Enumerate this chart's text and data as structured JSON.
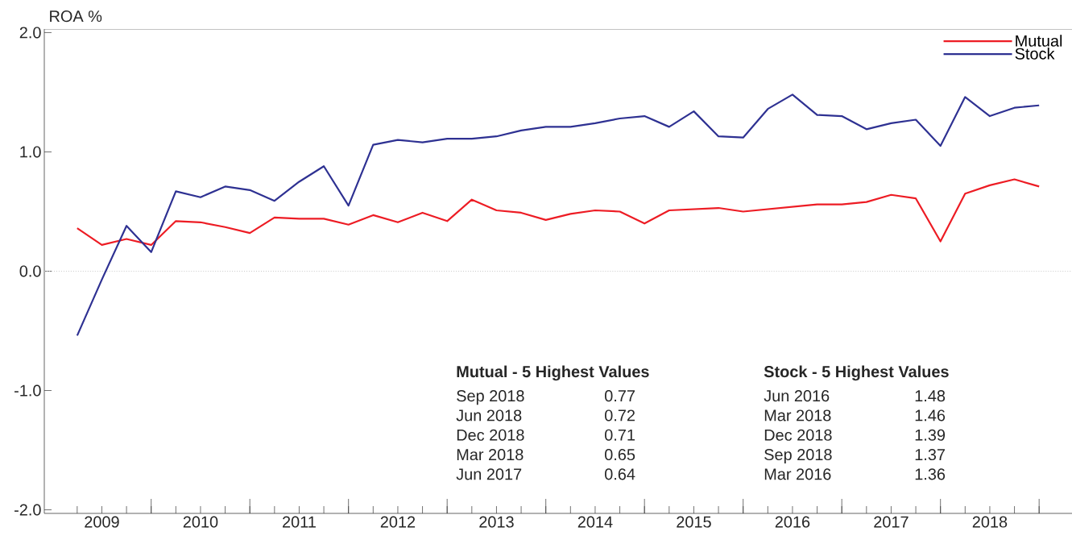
{
  "chart_data": {
    "type": "line",
    "ylabel": "ROA %",
    "x": [
      "2009-03",
      "2009-06",
      "2009-09",
      "2009-12",
      "2010-03",
      "2010-06",
      "2010-09",
      "2010-12",
      "2011-03",
      "2011-06",
      "2011-09",
      "2011-12",
      "2012-03",
      "2012-06",
      "2012-09",
      "2012-12",
      "2013-03",
      "2013-06",
      "2013-09",
      "2013-12",
      "2014-03",
      "2014-06",
      "2014-09",
      "2014-12",
      "2015-03",
      "2015-06",
      "2015-09",
      "2015-12",
      "2016-03",
      "2016-06",
      "2016-09",
      "2016-12",
      "2017-03",
      "2017-06",
      "2017-09",
      "2017-12",
      "2018-03",
      "2018-06",
      "2018-09",
      "2018-12"
    ],
    "series": [
      {
        "name": "Mutual",
        "color": "#ed1c24",
        "values": [
          0.36,
          0.22,
          0.27,
          0.22,
          0.42,
          0.41,
          0.37,
          0.32,
          0.45,
          0.44,
          0.44,
          0.39,
          0.47,
          0.41,
          0.49,
          0.42,
          0.6,
          0.51,
          0.49,
          0.43,
          0.48,
          0.51,
          0.5,
          0.4,
          0.51,
          0.52,
          0.53,
          0.5,
          0.52,
          0.54,
          0.56,
          0.56,
          0.58,
          0.64,
          0.61,
          0.25,
          0.65,
          0.72,
          0.77,
          0.71
        ]
      },
      {
        "name": "Stock",
        "color": "#2e3192",
        "values": [
          -0.54,
          -0.07,
          0.38,
          0.16,
          0.67,
          0.62,
          0.71,
          0.68,
          0.59,
          0.75,
          0.88,
          0.55,
          1.06,
          1.1,
          1.08,
          1.11,
          1.11,
          1.13,
          1.18,
          1.21,
          1.21,
          1.24,
          1.28,
          1.3,
          1.21,
          1.34,
          1.13,
          1.12,
          1.36,
          1.48,
          1.31,
          1.3,
          1.19,
          1.24,
          1.27,
          1.05,
          1.46,
          1.3,
          1.37,
          1.39
        ]
      }
    ],
    "xlim": [
      "2008-11",
      "2019-04"
    ],
    "xticks": [
      {
        "value": "2009-03",
        "label": null
      },
      {
        "value": "2009-06",
        "label": "2009"
      },
      {
        "value": "2009-09",
        "label": null
      },
      {
        "value": "2009-12",
        "label": null
      },
      {
        "value": "2010-03",
        "label": null
      },
      {
        "value": "2010-06",
        "label": "2010"
      },
      {
        "value": "2010-09",
        "label": null
      },
      {
        "value": "2010-12",
        "label": null
      },
      {
        "value": "2011-03",
        "label": null
      },
      {
        "value": "2011-06",
        "label": "2011"
      },
      {
        "value": "2011-09",
        "label": null
      },
      {
        "value": "2011-12",
        "label": null
      },
      {
        "value": "2012-03",
        "label": null
      },
      {
        "value": "2012-06",
        "label": "2012"
      },
      {
        "value": "2012-09",
        "label": null
      },
      {
        "value": "2012-12",
        "label": null
      },
      {
        "value": "2013-03",
        "label": null
      },
      {
        "value": "2013-06",
        "label": "2013"
      },
      {
        "value": "2013-09",
        "label": null
      },
      {
        "value": "2013-12",
        "label": null
      },
      {
        "value": "2014-03",
        "label": null
      },
      {
        "value": "2014-06",
        "label": "2014"
      },
      {
        "value": "2014-09",
        "label": null
      },
      {
        "value": "2014-12",
        "label": null
      },
      {
        "value": "2015-03",
        "label": null
      },
      {
        "value": "2015-06",
        "label": "2015"
      },
      {
        "value": "2015-09",
        "label": null
      },
      {
        "value": "2015-12",
        "label": null
      },
      {
        "value": "2016-03",
        "label": null
      },
      {
        "value": "2016-06",
        "label": "2016"
      },
      {
        "value": "2016-09",
        "label": null
      },
      {
        "value": "2016-12",
        "label": null
      },
      {
        "value": "2017-03",
        "label": null
      },
      {
        "value": "2017-06",
        "label": "2017"
      },
      {
        "value": "2017-09",
        "label": null
      },
      {
        "value": "2017-12",
        "label": null
      },
      {
        "value": "2018-03",
        "label": null
      },
      {
        "value": "2018-06",
        "label": "2018"
      },
      {
        "value": "2018-09",
        "label": null
      },
      {
        "value": "2018-12",
        "label": null
      }
    ],
    "ylim": [
      -2.03,
      2.03
    ],
    "yticks": [
      {
        "value": -2,
        "label": "-2.0"
      },
      {
        "value": -1,
        "label": "-1.0"
      },
      {
        "value": 0,
        "label": "0.0"
      },
      {
        "value": 1,
        "label": "1.0"
      },
      {
        "value": 2,
        "label": "2.0"
      }
    ],
    "ref_lines": [
      {
        "axis": "y",
        "value": 0,
        "color": "#c8c8c8",
        "line_style": "dotted"
      }
    ],
    "legend": "top right",
    "marker": "none",
    "annotations": [
      "Mutual - 5 Highest Values",
      "Sep 2018",
      "0.77",
      "Jun 2018",
      "0.72",
      "Dec 2018",
      "0.71",
      "Mar 2018",
      "0.65",
      "Jun 2017",
      "0.64",
      "Stock - 5 Highest Values",
      "Jun 2016",
      "1.48",
      "Mar 2018",
      "1.46",
      "Dec 2018",
      "1.39",
      "Sep 2018",
      "1.37",
      "Mar 2016",
      "1.36"
    ]
  }
}
